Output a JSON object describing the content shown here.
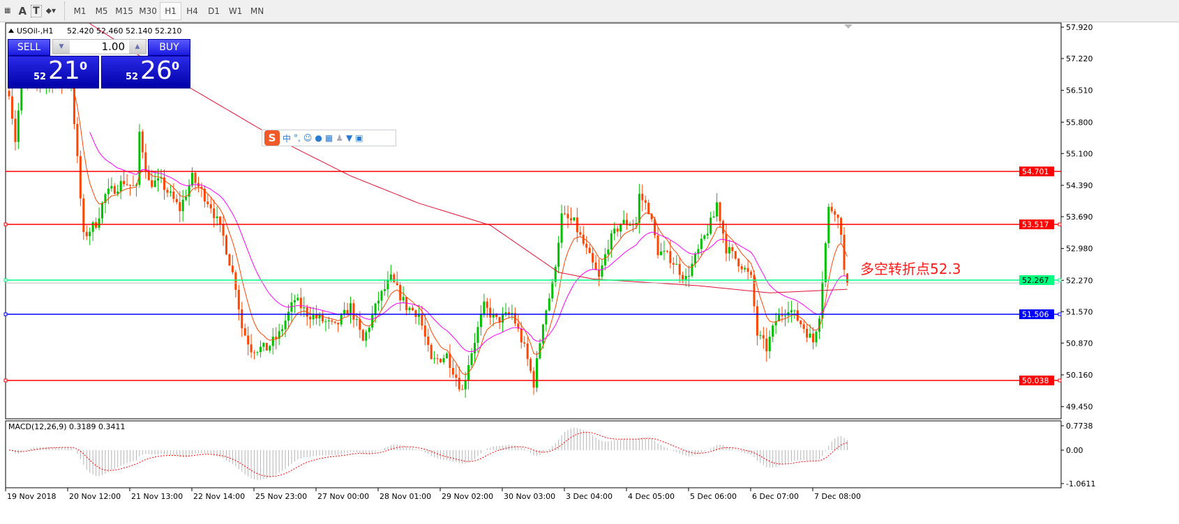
{
  "toolbar": {
    "tools": [
      "line-studies-icon",
      "text-A-icon",
      "text-label-icon",
      "arrows-icon"
    ],
    "timeframes": [
      "M1",
      "M5",
      "M15",
      "M30",
      "H1",
      "H4",
      "D1",
      "W1",
      "MN"
    ],
    "active_timeframe": "H1"
  },
  "chart_header": {
    "symbol": "USOil-,H1",
    "ohlc": "52.420 52.460 52.140 52.210"
  },
  "trade_panel": {
    "sell_label": "SELL",
    "buy_label": "BUY",
    "lot": "1.00",
    "sell_price": {
      "prefix": "52",
      "main": "21",
      "sup": "0"
    },
    "buy_price": {
      "prefix": "52",
      "main": "26",
      "sup": "0"
    }
  },
  "ime": {
    "lang": "中",
    "punct": "°,"
  },
  "annotation": "多空转折点52.3",
  "chart_data": {
    "type": "candlestick",
    "symbol": "USOil-",
    "timeframe": "H1",
    "ylim": [
      49.2,
      58.0
    ],
    "y_ticks": [
      "57.920",
      "57.220",
      "56.510",
      "55.800",
      "55.100",
      "54.390",
      "53.690",
      "52.980",
      "52.270",
      "51.570",
      "50.870",
      "50.160",
      "49.450"
    ],
    "x_ticks": [
      "19 Nov 2018",
      "20 Nov 12:00",
      "21 Nov 13:00",
      "22 Nov 14:00",
      "25 Nov 23:00",
      "27 Nov 00:00",
      "28 Nov 01:00",
      "29 Nov 02:00",
      "30 Nov 03:00",
      "3 Dec 04:00",
      "4 Dec 05:00",
      "5 Dec 06:00",
      "6 Dec 07:00",
      "7 Dec 08:00"
    ],
    "close_path_bar_price": [
      [
        0,
        56.5
      ],
      [
        2,
        55.4
      ],
      [
        4,
        56.7
      ],
      [
        20,
        56.7
      ],
      [
        22,
        54.95
      ],
      [
        24,
        53.24
      ],
      [
        28,
        53.55
      ],
      [
        31,
        54.17
      ],
      [
        37,
        54.48
      ],
      [
        41,
        54.3
      ],
      [
        42,
        55.57
      ],
      [
        45,
        54.45
      ],
      [
        49,
        54.45
      ],
      [
        55,
        53.86
      ],
      [
        59,
        54.56
      ],
      [
        65,
        53.94
      ],
      [
        69,
        53.24
      ],
      [
        73,
        52.15
      ],
      [
        75,
        51.22
      ],
      [
        78,
        50.75
      ],
      [
        83,
        50.75
      ],
      [
        87,
        51.06
      ],
      [
        92,
        51.84
      ],
      [
        96,
        51.53
      ],
      [
        101,
        51.37
      ],
      [
        105,
        51.22
      ],
      [
        110,
        51.68
      ],
      [
        114,
        50.9
      ],
      [
        119,
        51.84
      ],
      [
        123,
        52.3
      ],
      [
        128,
        51.68
      ],
      [
        132,
        51.53
      ],
      [
        136,
        50.44
      ],
      [
        141,
        50.6
      ],
      [
        146,
        49.8
      ],
      [
        148,
        50.44
      ],
      [
        153,
        51.68
      ],
      [
        157,
        51.37
      ],
      [
        162,
        51.53
      ],
      [
        166,
        50.75
      ],
      [
        169,
        49.97
      ],
      [
        172,
        51.37
      ],
      [
        175,
        52.15
      ],
      [
        178,
        53.7
      ],
      [
        182,
        53.55
      ],
      [
        186,
        52.92
      ],
      [
        190,
        52.3
      ],
      [
        193,
        53.08
      ],
      [
        197,
        53.55
      ],
      [
        202,
        53.55
      ],
      [
        203,
        54.17
      ],
      [
        206,
        53.86
      ],
      [
        209,
        52.92
      ],
      [
        213,
        52.77
      ],
      [
        218,
        52.3
      ],
      [
        222,
        52.92
      ],
      [
        227,
        53.7
      ],
      [
        228,
        54.0
      ],
      [
        231,
        52.99
      ],
      [
        236,
        52.61
      ],
      [
        239,
        52.3
      ],
      [
        241,
        51.06
      ],
      [
        244,
        50.75
      ],
      [
        247,
        51.37
      ],
      [
        251,
        51.68
      ],
      [
        256,
        51.22
      ],
      [
        259,
        50.9
      ],
      [
        261,
        51.53
      ],
      [
        264,
        53.86
      ],
      [
        266,
        53.86
      ],
      [
        268,
        53.39
      ],
      [
        269,
        52.46
      ],
      [
        270,
        52.21
      ]
    ],
    "ma_long_bar_price": [
      [
        26,
        58.0
      ],
      [
        55,
        56.7
      ],
      [
        87,
        55.4
      ],
      [
        110,
        54.6
      ],
      [
        132,
        53.99
      ],
      [
        155,
        53.5
      ],
      [
        177,
        52.45
      ],
      [
        188,
        52.3
      ],
      [
        222,
        52.15
      ],
      [
        245,
        51.99
      ],
      [
        270,
        52.07
      ]
    ],
    "horizontal_lines": [
      {
        "price": "54.701",
        "color": "#ff0000"
      },
      {
        "price": "53.517",
        "color": "#ff0000"
      },
      {
        "price": "52.267",
        "color": "#00ff7f"
      },
      {
        "price": "51.506",
        "color": "#0000ff"
      },
      {
        "price": "50.038",
        "color": "#ff0000"
      }
    ],
    "colors": {
      "up": "#00c000",
      "down": "#ff4500",
      "ma_fast": "#ff4500",
      "ma_mid": "#ff00ff",
      "ma_long": "#e01030"
    },
    "macd": {
      "label": "MACD(12,26,9) 0.3189 0.3411",
      "ticks": [
        "0.7738",
        "0.00",
        "-1.0611"
      ],
      "ylim": [
        -1.0611,
        0.7738
      ]
    }
  }
}
